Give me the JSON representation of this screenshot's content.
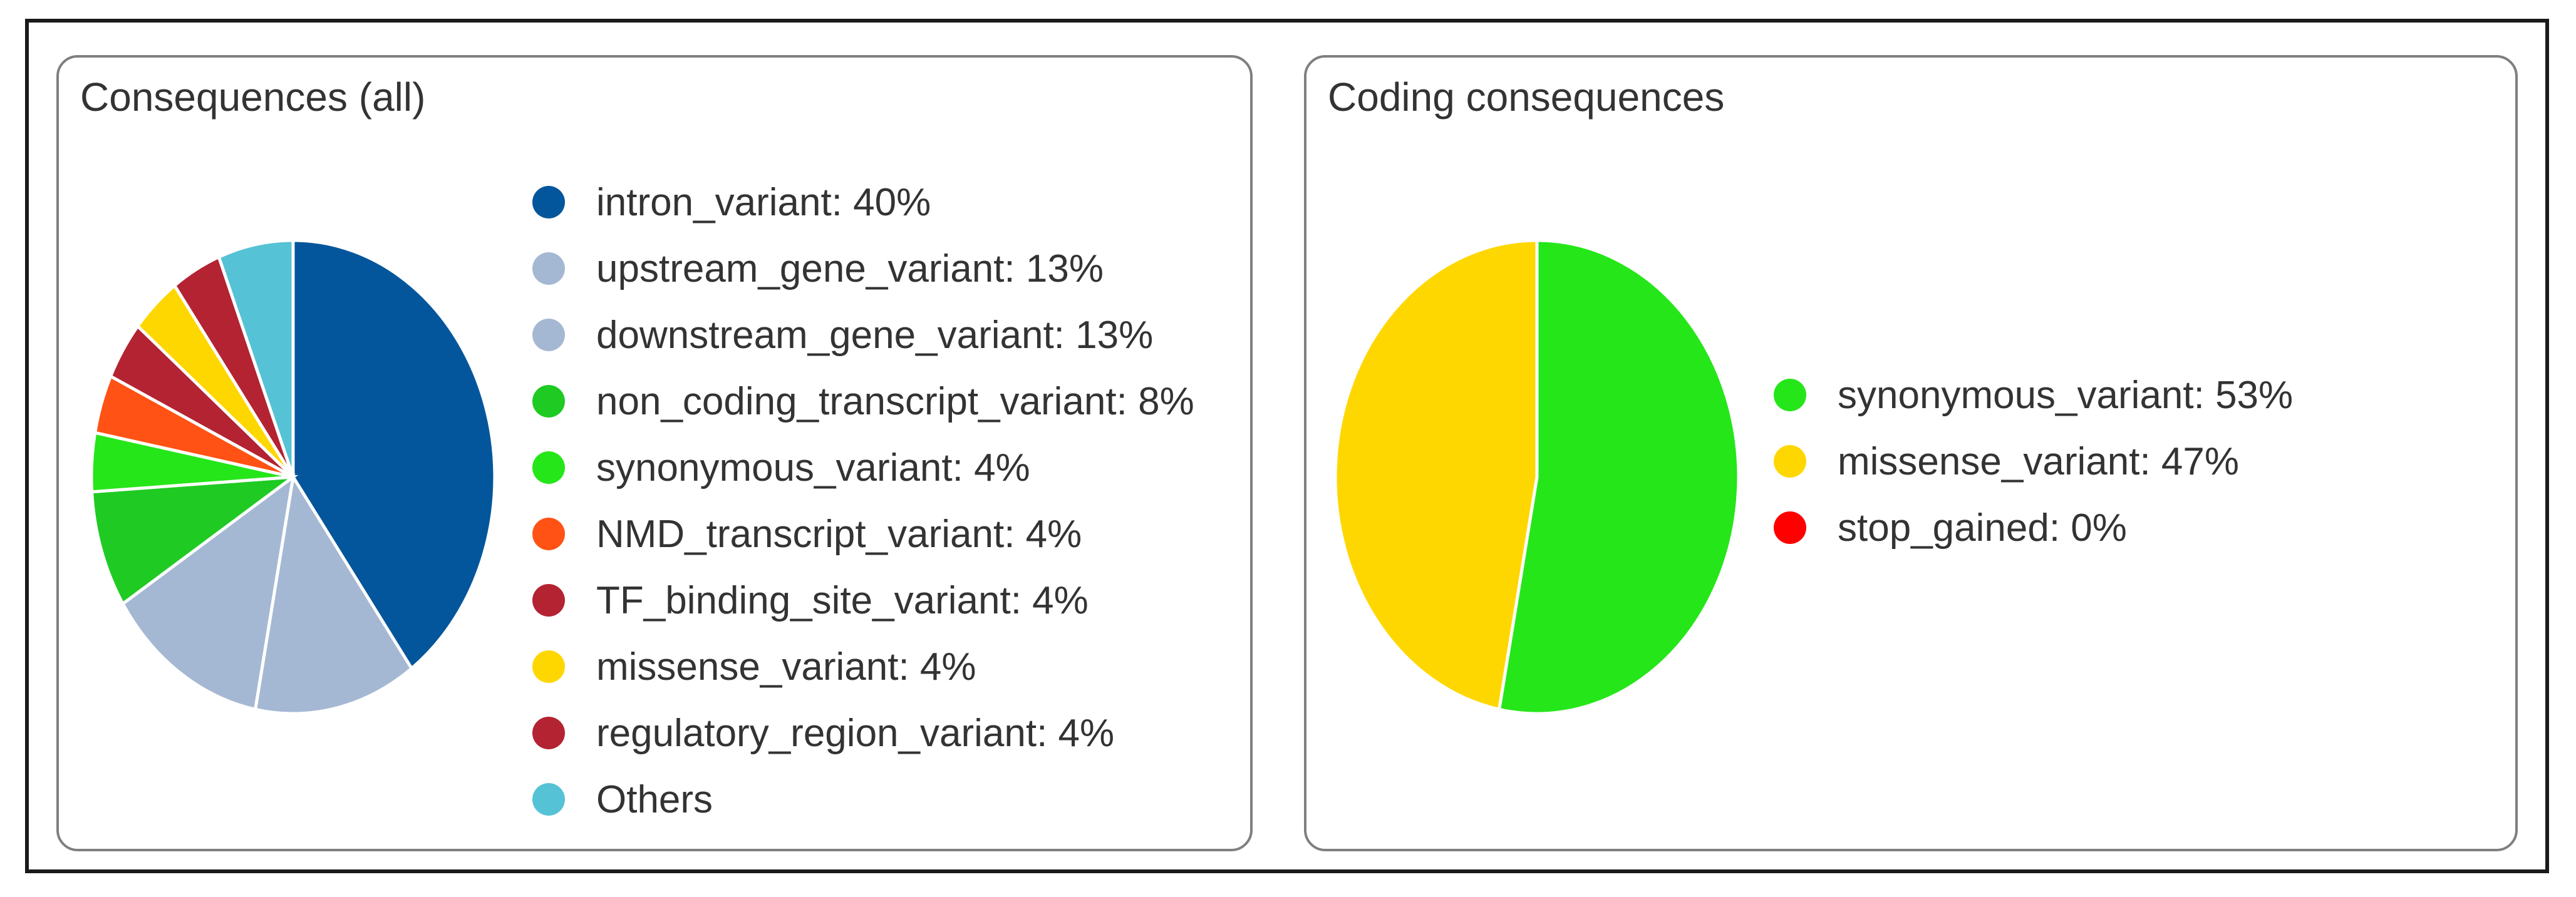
{
  "chart_data": [
    {
      "type": "pie",
      "title": "Consequences (all)",
      "legend_position": "right",
      "slices": [
        {
          "label": "intron_variant",
          "value": 40,
          "legend_text": "intron_variant: 40%",
          "color": "#03569b"
        },
        {
          "label": "upstream_gene_variant",
          "value": 13,
          "legend_text": "upstream_gene_variant: 13%",
          "color": "#a5b8d3"
        },
        {
          "label": "downstream_gene_variant",
          "value": 13,
          "legend_text": "downstream_gene_variant: 13%",
          "color": "#a5b8d3"
        },
        {
          "label": "non_coding_transcript_variant",
          "value": 8,
          "legend_text": "non_coding_transcript_variant: 8%",
          "color": "#1fca23"
        },
        {
          "label": "synonymous_variant",
          "value": 4,
          "legend_text": "synonymous_variant: 4%",
          "color": "#25e619"
        },
        {
          "label": "NMD_transcript_variant",
          "value": 4,
          "legend_text": "NMD_transcript_variant: 4%",
          "color": "#ff5214"
        },
        {
          "label": "TF_binding_site_variant",
          "value": 4,
          "legend_text": "TF_binding_site_variant: 4%",
          "color": "#b32332"
        },
        {
          "label": "missense_variant",
          "value": 4,
          "legend_text": "missense_variant: 4%",
          "color": "#ffd700"
        },
        {
          "label": "regulatory_region_variant",
          "value": 4,
          "legend_text": "regulatory_region_variant: 4%",
          "color": "#b32332"
        },
        {
          "label": "Others",
          "value": 6,
          "legend_text": "Others",
          "color": "#56c2d6"
        }
      ]
    },
    {
      "type": "pie",
      "title": "Coding consequences",
      "legend_position": "right",
      "slices": [
        {
          "label": "synonymous_variant",
          "value": 53,
          "legend_text": "synonymous_variant: 53%",
          "color": "#25e619"
        },
        {
          "label": "missense_variant",
          "value": 47,
          "legend_text": "missense_variant: 47%",
          "color": "#ffd700"
        },
        {
          "label": "stop_gained",
          "value": 0,
          "legend_text": "stop_gained: 0%",
          "color": "#ff0000"
        }
      ]
    }
  ]
}
